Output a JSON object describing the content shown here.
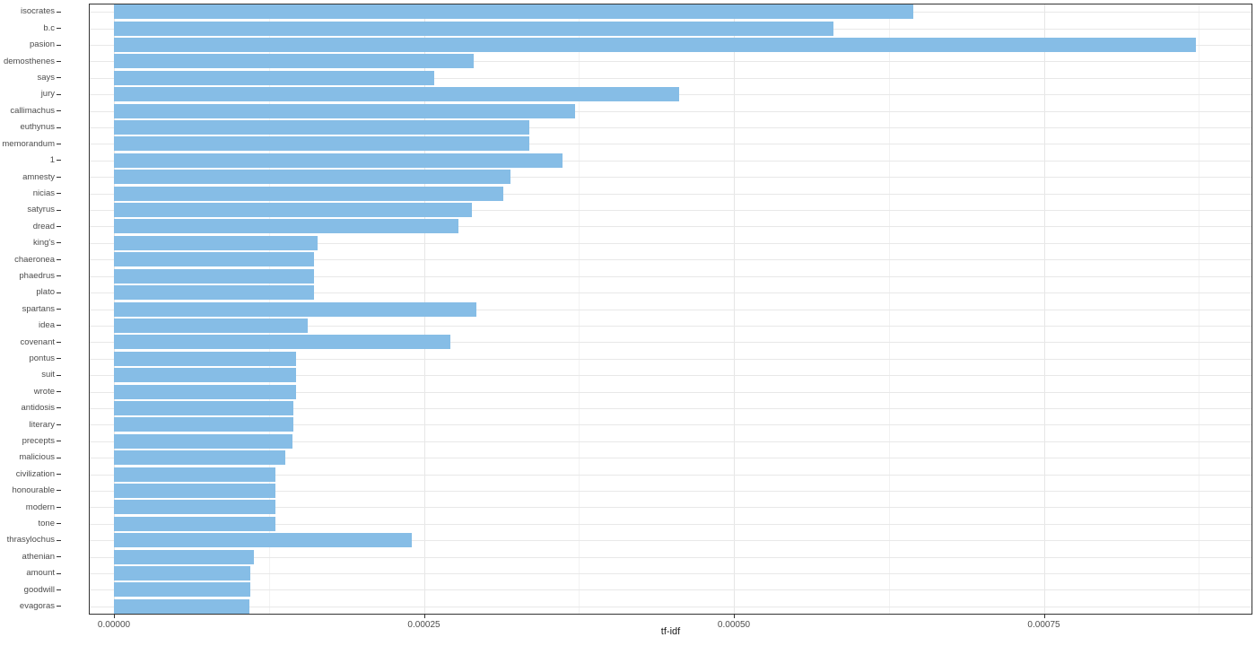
{
  "chart_data": {
    "type": "bar",
    "orientation": "horizontal",
    "title": "",
    "xlabel": "tf-idf",
    "ylabel": "",
    "legend": "none",
    "grid": "on",
    "xlim": [
      0,
      0.00091
    ],
    "x_ticks": [
      0,
      0.00025,
      0.0005,
      0.00075
    ],
    "x_tick_labels": [
      "0.00000",
      "0.00025",
      "0.00050",
      "0.00075"
    ],
    "categories": [
      "isocrates",
      "b.c",
      "pasion",
      "demosthenes",
      "says",
      "jury",
      "callimachus",
      "euthynus",
      "memorandum",
      "1",
      "amnesty",
      "nicias",
      "satyrus",
      "dread",
      "king's",
      "chaeronea",
      "phaedrus",
      "plato",
      "spartans",
      "idea",
      "covenant",
      "pontus",
      "suit",
      "wrote",
      "antidosis",
      "literary",
      "precepts",
      "malicious",
      "civilization",
      "honourable",
      "modern",
      "tone",
      "thrasylochus",
      "athenian",
      "amount",
      "goodwill",
      "evagoras"
    ],
    "values": [
      0.000645,
      0.00058,
      0.000873,
      0.00029,
      0.000258,
      0.000456,
      0.000372,
      0.000335,
      0.000335,
      0.000362,
      0.00032,
      0.000314,
      0.000289,
      0.000278,
      0.000164,
      0.000161,
      0.000161,
      0.000161,
      0.000292,
      0.000156,
      0.000271,
      0.000147,
      0.000147,
      0.000147,
      0.000145,
      0.000145,
      0.000144,
      0.000138,
      0.00013,
      0.00013,
      0.00013,
      0.00013,
      0.00024,
      0.000113,
      0.00011,
      0.00011,
      0.000109
    ],
    "bar_color": "#86BDE6",
    "panel_border_color": "#333333",
    "major_grid_color": "#E6E6E6",
    "minor_grid_color": "#F2F2F2",
    "row_grid_color": "#E8E8E8",
    "axis_text_color": "#4D4D4D",
    "tick_mark_color": "#333333"
  }
}
